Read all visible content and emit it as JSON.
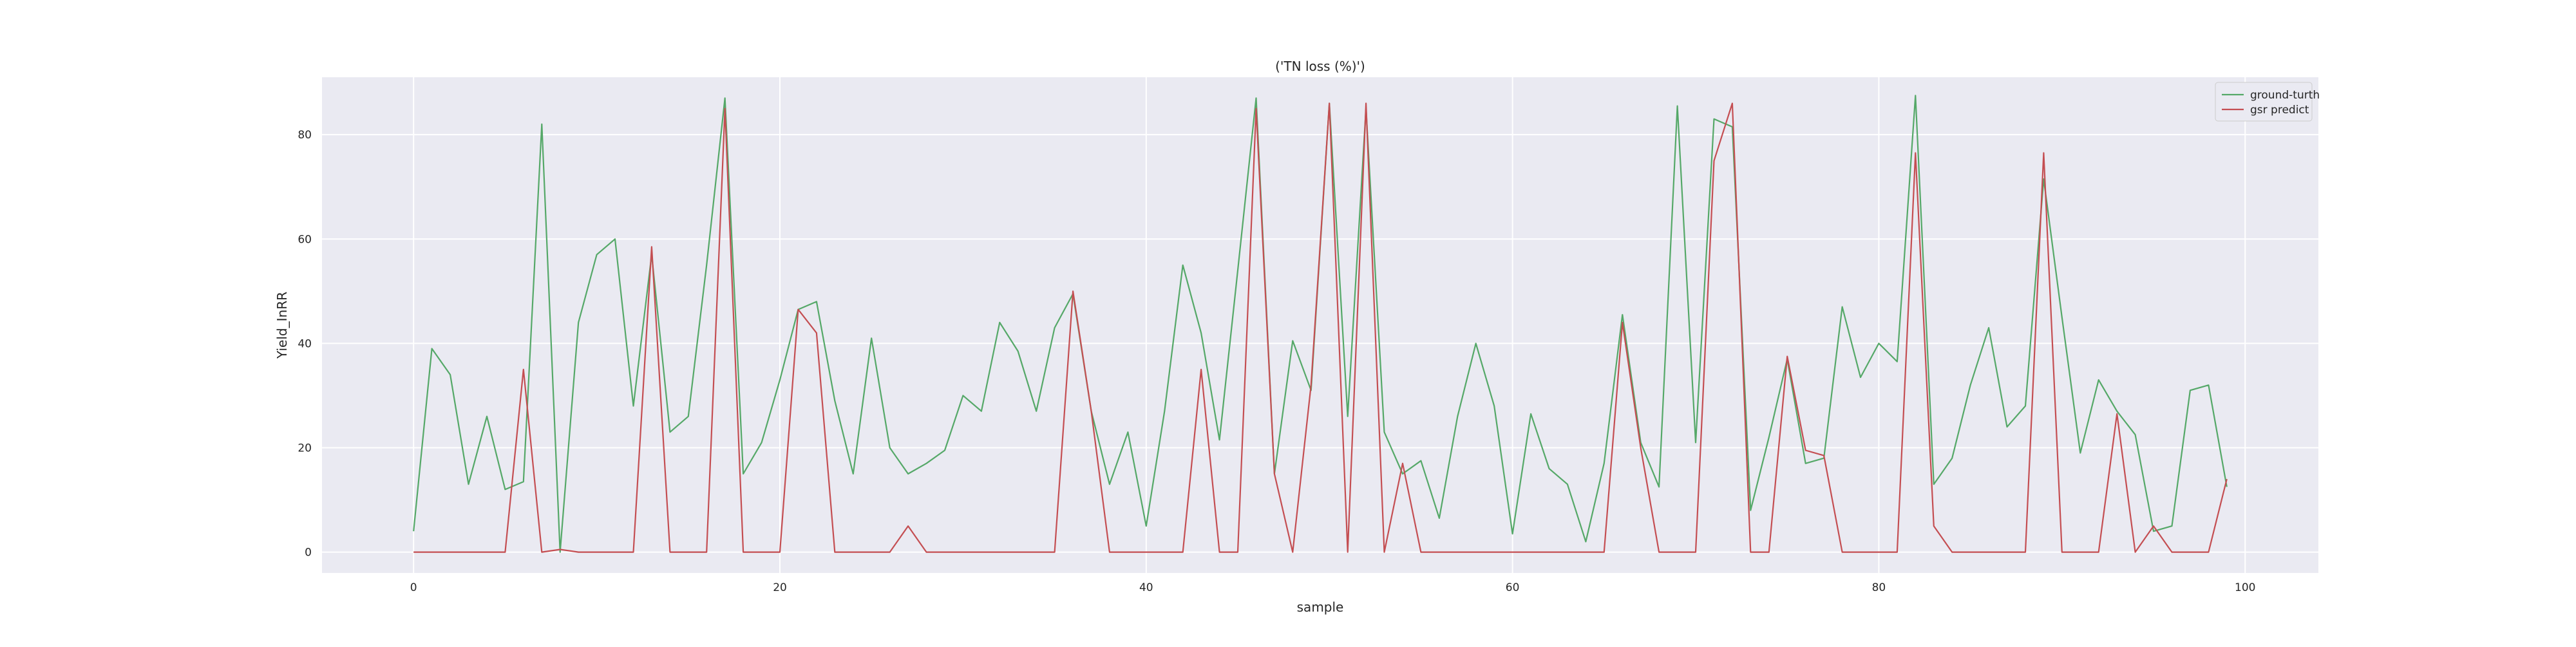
{
  "chart_data": {
    "type": "line",
    "title": "('TN loss (%)')",
    "xlabel": "sample",
    "ylabel": "Yield_InRR",
    "xlim": [
      -5,
      104
    ],
    "ylim": [
      -4,
      91
    ],
    "xticks": [
      0,
      20,
      40,
      60,
      80,
      100
    ],
    "yticks": [
      0,
      20,
      40,
      60,
      80
    ],
    "grid": true,
    "legend_position": "top-right",
    "background_color": "#eaeaf2",
    "x": [
      0,
      1,
      2,
      3,
      4,
      5,
      6,
      7,
      8,
      9,
      10,
      11,
      12,
      13,
      14,
      15,
      16,
      17,
      18,
      19,
      20,
      21,
      22,
      23,
      24,
      25,
      26,
      27,
      28,
      29,
      30,
      31,
      32,
      33,
      34,
      35,
      36,
      37,
      38,
      39,
      40,
      41,
      42,
      43,
      44,
      45,
      46,
      47,
      48,
      49,
      50,
      51,
      52,
      53,
      54,
      55,
      56,
      57,
      58,
      59,
      60,
      61,
      62,
      63,
      64,
      65,
      66,
      67,
      68,
      69,
      70,
      71,
      72,
      73,
      74,
      75,
      76,
      77,
      78,
      79,
      80,
      81,
      82,
      83,
      84,
      85,
      86,
      87,
      88,
      89,
      90,
      91,
      92,
      93,
      94,
      95,
      96,
      97,
      98,
      99
    ],
    "series": [
      {
        "name": "ground-turth",
        "color": "#55a868",
        "values": [
          4,
          39,
          34,
          13,
          26,
          12,
          13.5,
          82,
          0,
          44,
          57,
          60,
          28,
          57,
          23,
          26,
          55,
          87,
          15,
          21,
          33,
          46.5,
          48,
          29,
          15,
          41,
          20,
          15,
          17,
          19.5,
          30,
          27,
          44,
          38.5,
          27,
          43,
          49.5,
          27,
          13,
          23,
          5,
          27,
          55,
          42,
          21.5,
          54,
          87,
          15,
          40.5,
          31,
          86,
          26,
          85,
          23,
          15,
          17.5,
          6.5,
          26,
          40,
          28,
          3.5,
          26.5,
          16,
          13,
          2,
          17,
          45.5,
          21,
          12.5,
          85.5,
          21,
          83,
          81.5,
          8,
          22,
          37,
          17,
          18,
          47,
          33.5,
          40,
          36.5,
          87.5,
          13,
          18,
          32,
          43,
          24,
          28,
          71.5,
          45,
          19,
          33,
          27,
          22.5,
          4,
          5,
          31,
          32,
          12.5
        ]
      },
      {
        "name": "gsr predict",
        "color": "#c44e52",
        "values": [
          0,
          0,
          0,
          0,
          0,
          0,
          35,
          0,
          0.5,
          0,
          0,
          0,
          0,
          58.5,
          0,
          0,
          0,
          85,
          0,
          0,
          0,
          46.5,
          42,
          0,
          0,
          0,
          0,
          5,
          0,
          0,
          0,
          0,
          0,
          0,
          0,
          0,
          50,
          27,
          0,
          0,
          0,
          0,
          0,
          35,
          0,
          0,
          85,
          15,
          0,
          32,
          86,
          0,
          86,
          0,
          17,
          0,
          0,
          0,
          0,
          0,
          0,
          0,
          0,
          0,
          0,
          0,
          44,
          20,
          0,
          0,
          0,
          75,
          86,
          0,
          0,
          37.5,
          19.5,
          18.5,
          0,
          0,
          0,
          0,
          76.5,
          5,
          0,
          0,
          0,
          0,
          0,
          76.5,
          0,
          0,
          0,
          26.5,
          0,
          5,
          0,
          0,
          0,
          14
        ]
      }
    ]
  }
}
